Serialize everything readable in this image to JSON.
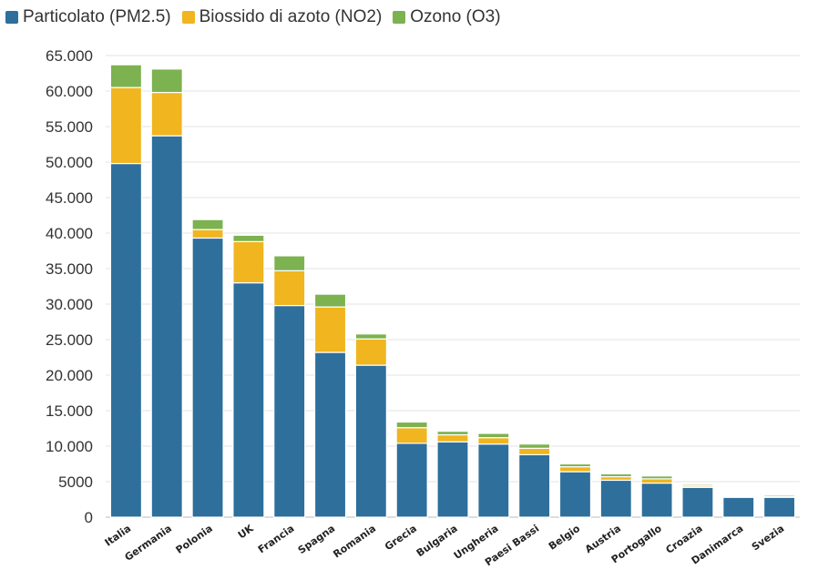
{
  "chart_data": {
    "type": "bar",
    "stacked": true,
    "categories": [
      "Italia",
      "Germania",
      "Polonia",
      "UK",
      "Francia",
      "Spagna",
      "Romania",
      "Grecia",
      "Bulgaria",
      "Ungheria",
      "Paesi Bassi",
      "Belgio",
      "Austria",
      "Portogallo",
      "Croazia",
      "Danimarca",
      "Svezia"
    ],
    "series": [
      {
        "name": "Particolato (PM2.5)",
        "color": "#2e6f9c",
        "values": [
          49800,
          53700,
          39300,
          33000,
          29800,
          23200,
          21400,
          10400,
          10600,
          10300,
          8800,
          6400,
          5200,
          4800,
          4200,
          2800,
          2800
        ]
      },
      {
        "name": "Biossido di azoto (NO2)",
        "color": "#f0b51f",
        "values": [
          10700,
          6100,
          1200,
          5800,
          4900,
          6400,
          3700,
          2200,
          1000,
          900,
          900,
          700,
          500,
          600,
          200,
          100,
          100
        ]
      },
      {
        "name": "Ozono (O3)",
        "color": "#7cb24f",
        "values": [
          3200,
          3300,
          1400,
          900,
          2100,
          1800,
          700,
          800,
          500,
          600,
          600,
          400,
          400,
          400,
          200,
          100,
          200
        ]
      }
    ],
    "ylim": [
      0,
      65000
    ],
    "yticks": [
      0,
      5000,
      10000,
      15000,
      20000,
      25000,
      30000,
      35000,
      40000,
      45000,
      50000,
      55000,
      60000,
      65000
    ],
    "ytick_labels": [
      "0",
      "5000",
      "10.000",
      "15.000",
      "20.000",
      "25.000",
      "30.000",
      "35.000",
      "40.000",
      "45.000",
      "50.000",
      "55.000",
      "60.000",
      "65.000"
    ],
    "legend_position": "top-left",
    "grid": true,
    "title": "",
    "xlabel": "",
    "ylabel": ""
  }
}
